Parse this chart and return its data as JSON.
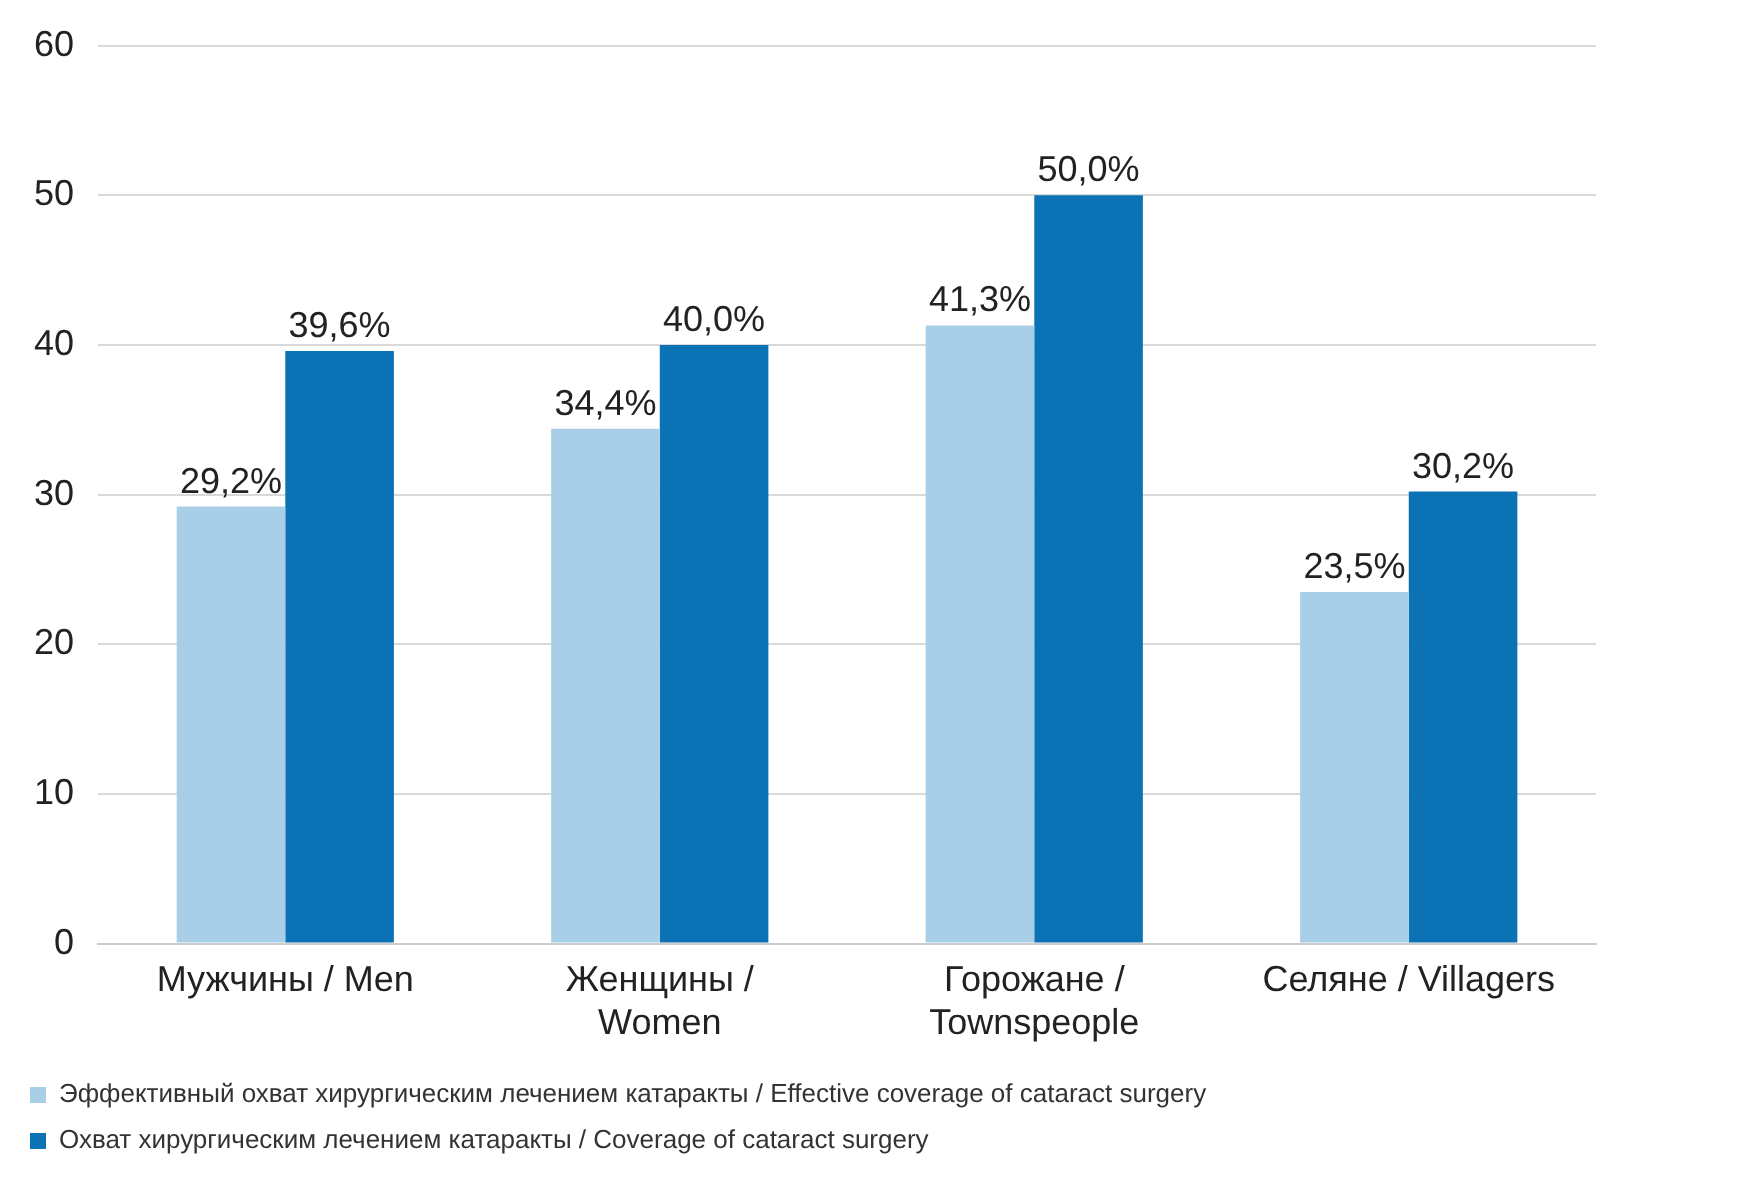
{
  "chart_data": {
    "type": "bar",
    "categories": [
      "Мужчины / Men",
      "Женщины / Women",
      "Горожане / Townspeople",
      "Селяне / Villagers"
    ],
    "series": [
      {
        "name": "Эффективный охват хирургическим лечением катаракты / Effective coverage of cataract surgery",
        "color": "#a9cfe8",
        "values": [
          29.2,
          34.4,
          41.3,
          23.5
        ],
        "value_labels": [
          "29,2%",
          "34,4%",
          "41,3%",
          "23,5%"
        ]
      },
      {
        "name": "Охват хирургическим лечением катаракты / Coverage of cataract surgery",
        "color": "#0a72b5",
        "values": [
          39.6,
          40.0,
          50.0,
          30.2
        ],
        "value_labels": [
          "39,6%",
          "40,0%",
          "50,0%",
          "30,2%"
        ]
      }
    ],
    "ylim": [
      0,
      60
    ],
    "yticks": [
      0,
      10,
      20,
      30,
      40,
      50,
      60
    ],
    "grid": "y",
    "legend": "bottom"
  }
}
